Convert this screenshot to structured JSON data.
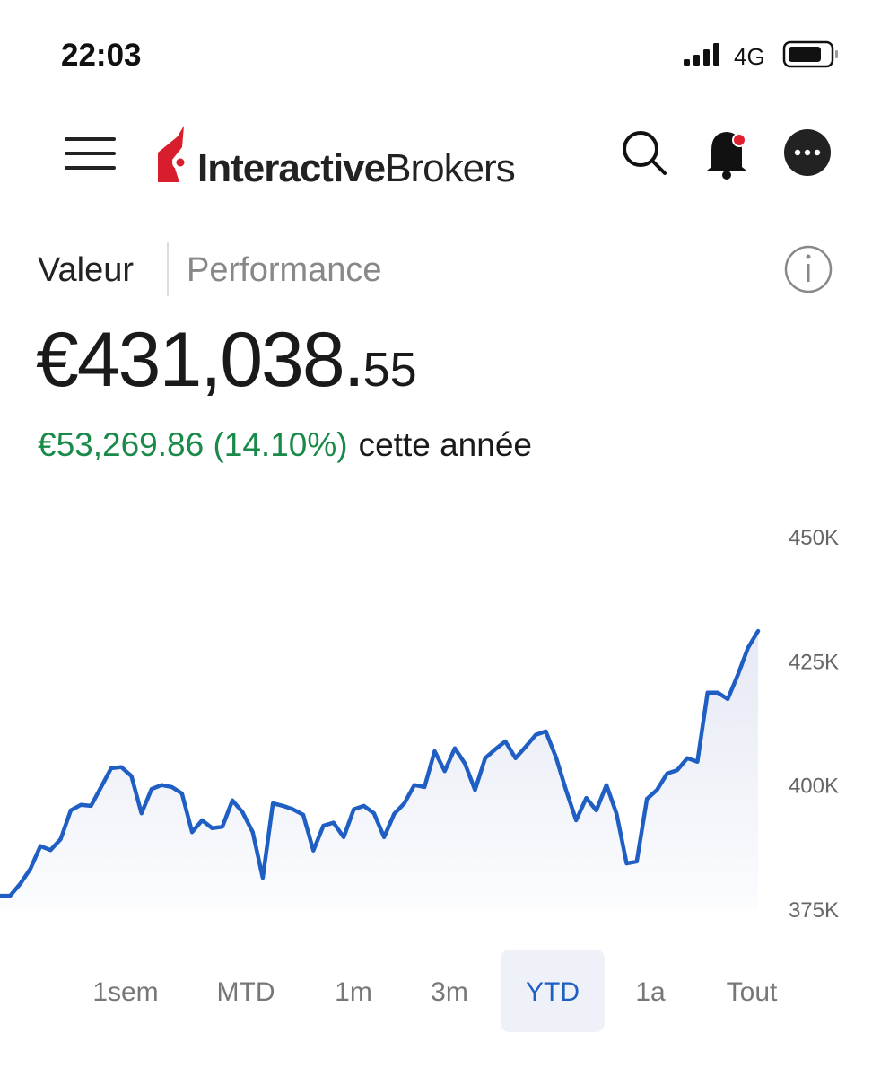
{
  "status": {
    "time": "22:03",
    "network": "4G"
  },
  "header": {
    "logo_bold": "Interactive",
    "logo_regular": "Brokers"
  },
  "tabs": [
    "Valeur",
    "Performance"
  ],
  "summary": {
    "value_main": "€431,038.",
    "value_cents": "55",
    "change": "€53,269.86 (14.10%)",
    "change_period": "cette année"
  },
  "chart_data": {
    "type": "line",
    "color": "#1f5fc4",
    "values": [
      377700,
      377700,
      380100,
      383100,
      387700,
      386900,
      389100,
      394900,
      396000,
      395800,
      399600,
      403400,
      403600,
      401800,
      394300,
      399200,
      400000,
      399600,
      398300,
      390500,
      392900,
      391300,
      391600,
      396900,
      394500,
      390500,
      381300,
      396300,
      395800,
      395100,
      394000,
      386800,
      391800,
      392400,
      389500,
      395100,
      395800,
      394300,
      389500,
      394200,
      396300,
      400000,
      399600,
      406800,
      402800,
      407400,
      404300,
      399000,
      405400,
      407200,
      408800,
      405400,
      407700,
      410100,
      410800,
      405600,
      399000,
      392900,
      397400,
      394900,
      400000,
      394200,
      384200,
      384600,
      397200,
      399000,
      402300,
      403000,
      405400,
      404700,
      418600,
      418600,
      417300,
      422200,
      427600,
      431000
    ],
    "ylim": [
      375000,
      450000
    ],
    "yticks": [
      {
        "value": 375000,
        "label": "375K"
      },
      {
        "value": 400000,
        "label": "400K"
      },
      {
        "value": 425000,
        "label": "425K"
      },
      {
        "value": 450000,
        "label": "450K"
      }
    ],
    "grid": false
  },
  "ranges": {
    "options": [
      "1sem",
      "MTD",
      "1m",
      "3m",
      "YTD",
      "1a",
      "Tout"
    ],
    "selected": 4
  }
}
